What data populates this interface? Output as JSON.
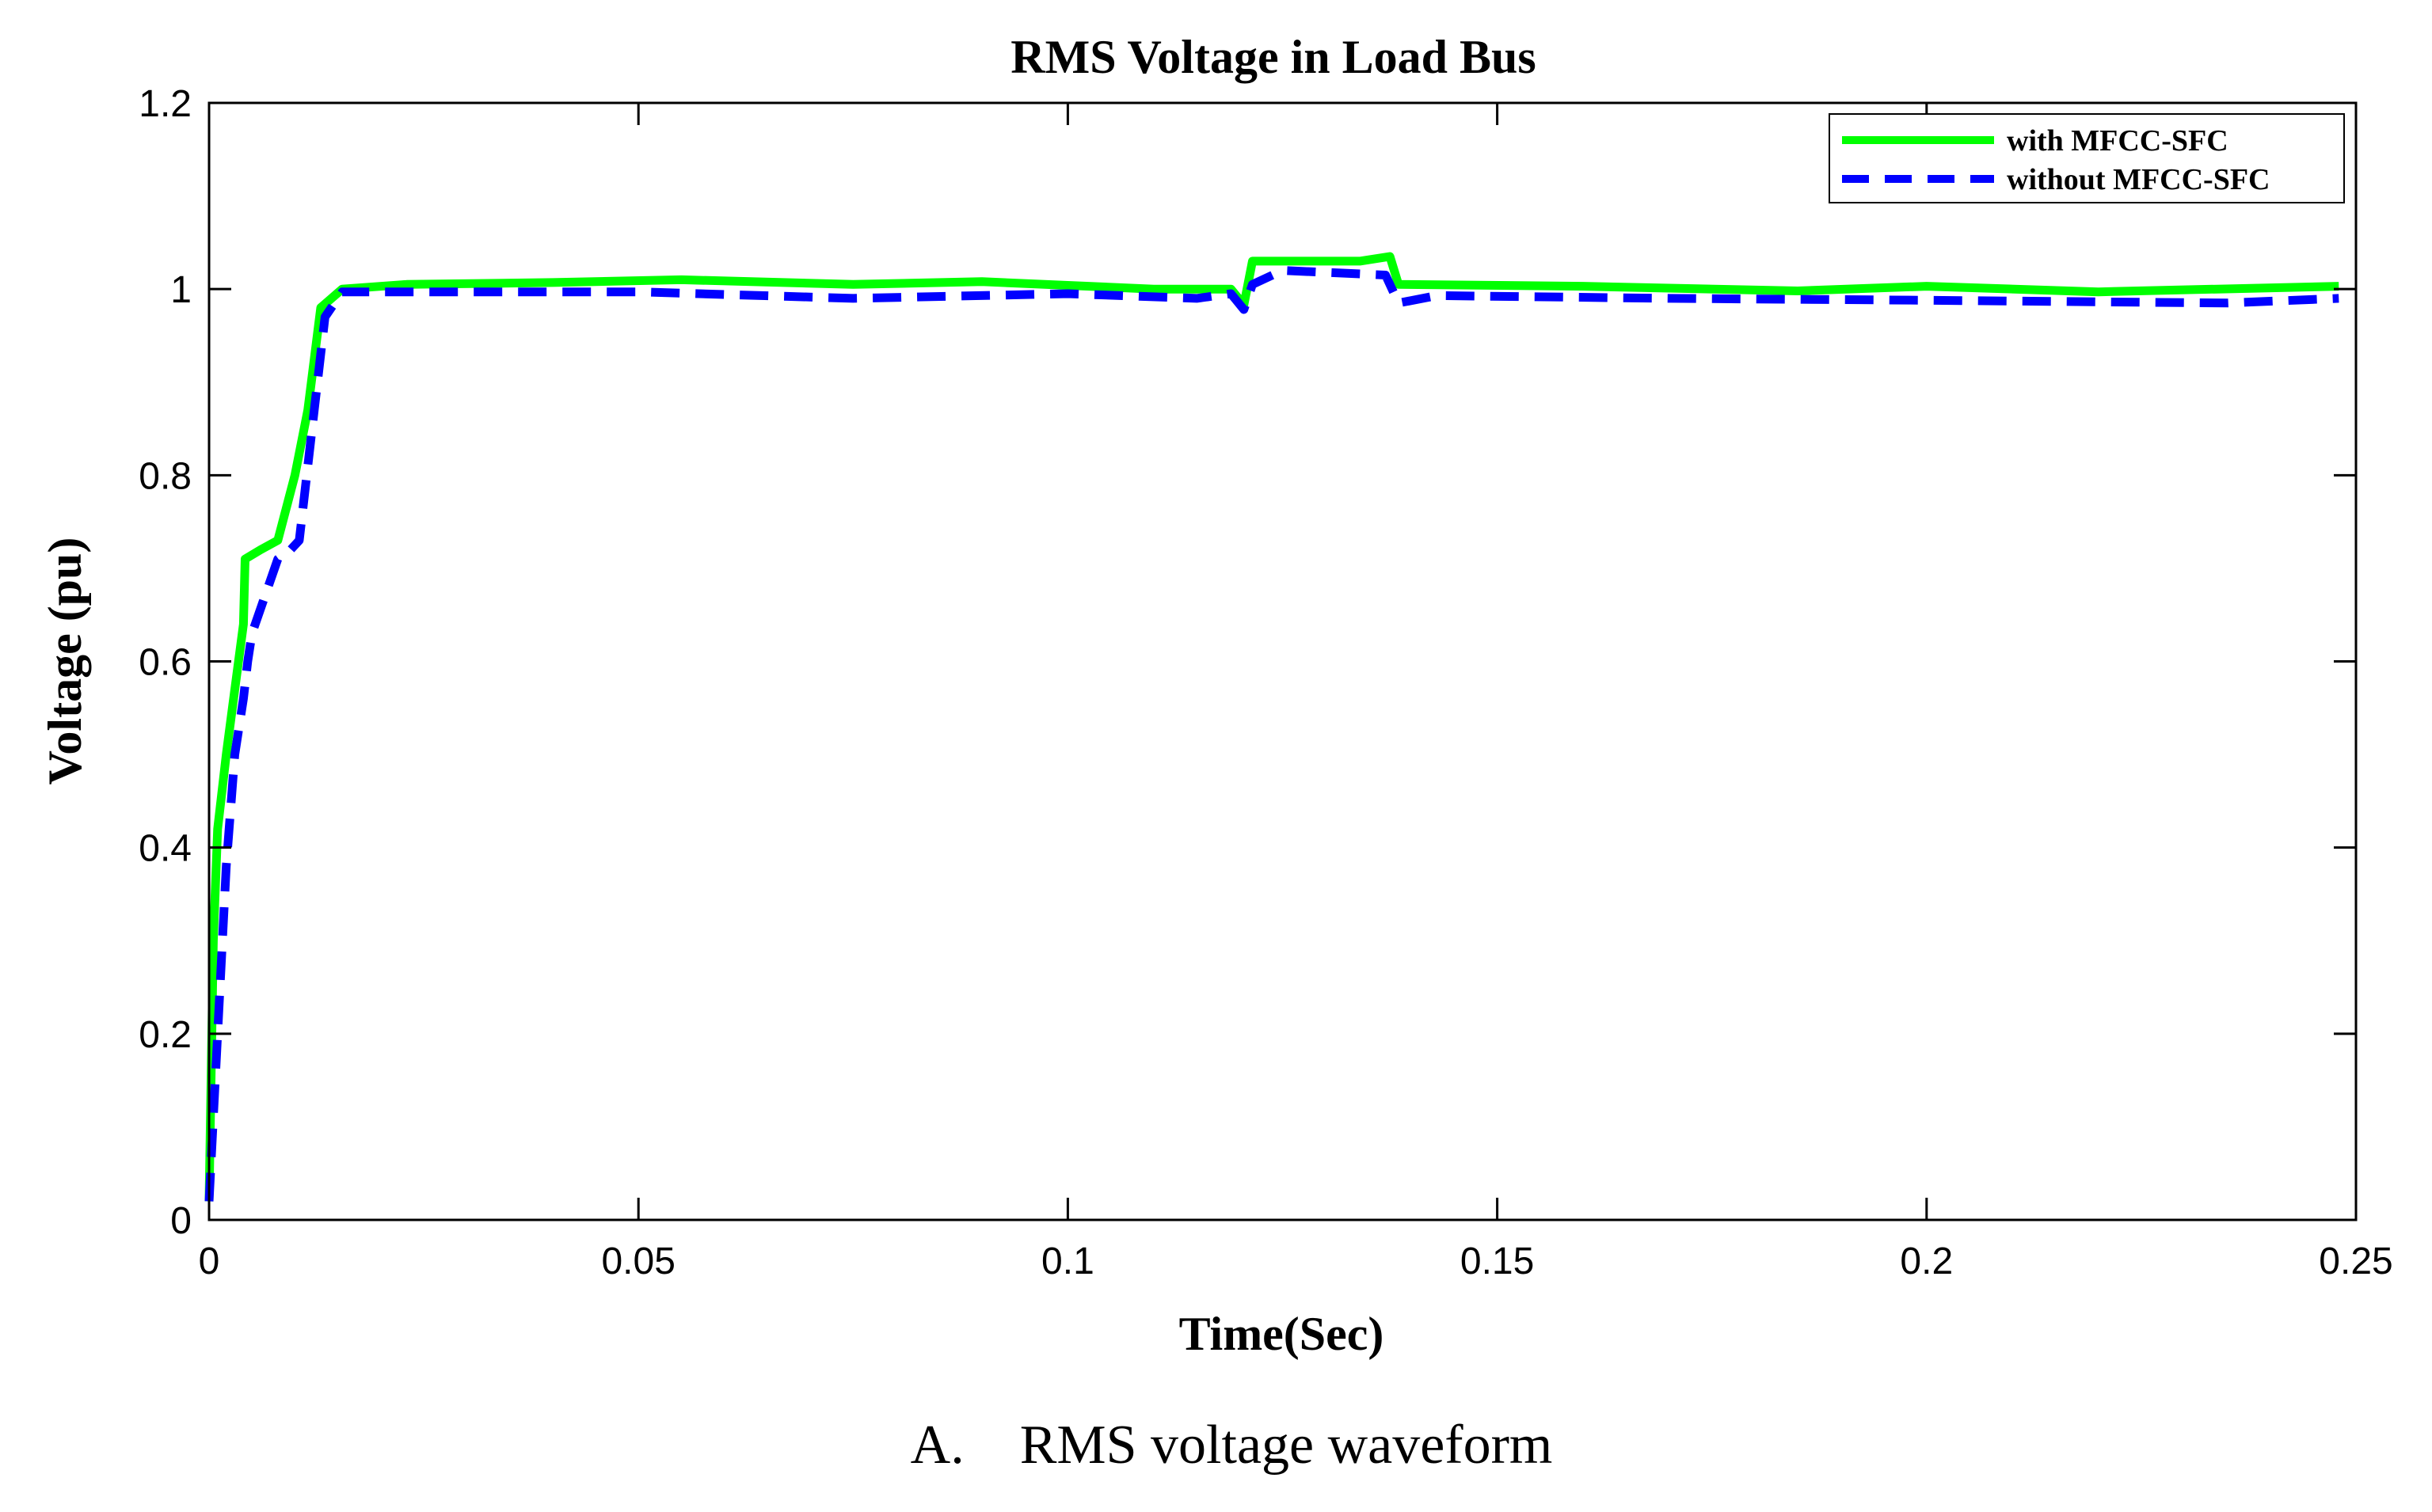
{
  "chart_data": {
    "type": "line",
    "title": "RMS Voltage in Load Bus",
    "xlabel": "Time(Sec)",
    "ylabel": "Voltage (pu)",
    "xlim": [
      0,
      0.25
    ],
    "ylim": [
      0,
      1.2
    ],
    "xticks": [
      0,
      0.05,
      0.1,
      0.15,
      0.2,
      0.25
    ],
    "xtick_labels": [
      "0",
      "0.05",
      "0.1",
      "0.15",
      "0.2",
      "0.25"
    ],
    "yticks": [
      0,
      0.2,
      0.4,
      0.6,
      0.8,
      1,
      1.2
    ],
    "ytick_labels": [
      "0",
      "0.2",
      "0.4",
      "0.6",
      "0.8",
      "1",
      "1.2"
    ],
    "grid": false,
    "legend_position": "top-right",
    "series": [
      {
        "name": "with MFCC-SFC",
        "color": "#00ff00",
        "style": "solid",
        "x": [
          0,
          0.0005,
          0.001,
          0.002,
          0.003,
          0.004,
          0.0042,
          0.006,
          0.008,
          0.01,
          0.0115,
          0.013,
          0.0155,
          0.023,
          0.04,
          0.055,
          0.075,
          0.09,
          0.11,
          0.119,
          0.1205,
          0.1215,
          0.125,
          0.134,
          0.1375,
          0.1385,
          0.16,
          0.185,
          0.2,
          0.22,
          0.248
        ],
        "y": [
          0.02,
          0.3,
          0.42,
          0.5,
          0.57,
          0.64,
          0.71,
          0.72,
          0.73,
          0.8,
          0.87,
          0.98,
          1.0,
          1.005,
          1.007,
          1.01,
          1.005,
          1.008,
          1.0,
          1.0,
          0.983,
          1.03,
          1.03,
          1.03,
          1.035,
          1.005,
          1.003,
          0.998,
          1.003,
          0.997,
          1.003
        ]
      },
      {
        "name": "without MFCC-SFC",
        "color": "#0000ff",
        "style": "dashed",
        "x": [
          0,
          0.001,
          0.002,
          0.003,
          0.004,
          0.0045,
          0.005,
          0.0065,
          0.008,
          0.0095,
          0.0105,
          0.012,
          0.0135,
          0.0155,
          0.025,
          0.05,
          0.075,
          0.1,
          0.115,
          0.119,
          0.1205,
          0.1215,
          0.125,
          0.137,
          0.1385,
          0.143,
          0.17,
          0.2,
          0.235,
          0.248
        ],
        "y": [
          0.02,
          0.2,
          0.38,
          0.5,
          0.56,
          0.6,
          0.63,
          0.67,
          0.71,
          0.72,
          0.73,
          0.85,
          0.97,
          0.997,
          0.997,
          0.997,
          0.99,
          0.995,
          0.99,
          0.995,
          0.978,
          1.005,
          1.02,
          1.015,
          0.985,
          0.993,
          0.99,
          0.988,
          0.985,
          0.99
        ]
      }
    ]
  },
  "caption": "A. RMS voltage waveform"
}
